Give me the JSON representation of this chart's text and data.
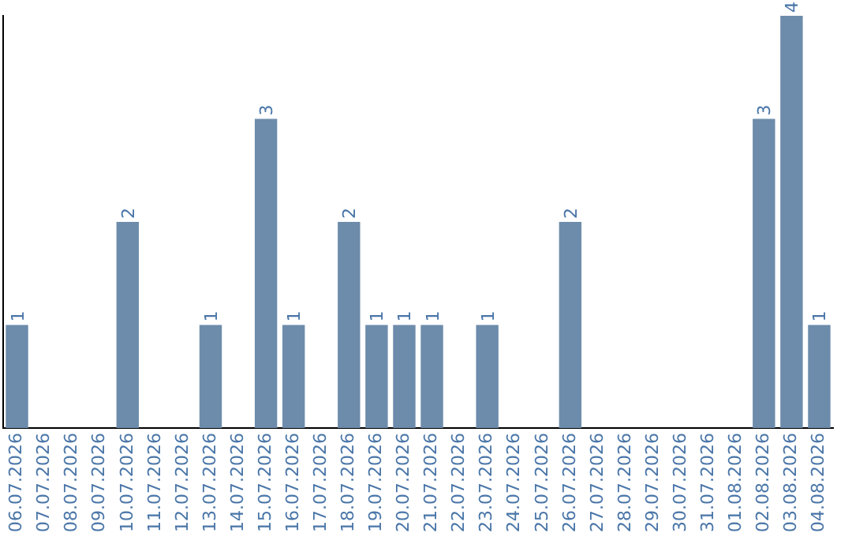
{
  "chart_data": {
    "type": "bar",
    "categories": [
      "06.07.2026",
      "07.07.2026",
      "08.07.2026",
      "09.07.2026",
      "10.07.2026",
      "11.07.2026",
      "12.07.2026",
      "13.07.2026",
      "14.07.2026",
      "15.07.2026",
      "16.07.2026",
      "17.07.2026",
      "18.07.2026",
      "19.07.2026",
      "20.07.2026",
      "21.07.2026",
      "22.07.2026",
      "23.07.2026",
      "24.07.2026",
      "25.07.2026",
      "26.07.2026",
      "27.07.2026",
      "28.07.2026",
      "29.07.2026",
      "30.07.2026",
      "31.07.2026",
      "01.08.2026",
      "02.08.2026",
      "03.08.2026",
      "04.08.2026"
    ],
    "values": [
      1,
      0,
      0,
      0,
      2,
      0,
      0,
      1,
      0,
      3,
      1,
      0,
      2,
      1,
      1,
      1,
      0,
      1,
      0,
      0,
      2,
      0,
      0,
      0,
      0,
      0,
      0,
      3,
      4,
      1
    ],
    "value_labels": [
      "1",
      null,
      null,
      null,
      "2",
      null,
      null,
      "1",
      null,
      "3",
      "1",
      null,
      "2",
      "1",
      "1",
      "1",
      null,
      "1",
      null,
      null,
      "2",
      null,
      null,
      null,
      null,
      null,
      null,
      "3",
      "4",
      "1"
    ],
    "color": "#6d8cab",
    "grid": false,
    "legend": false,
    "tick_labels": "x"
  }
}
